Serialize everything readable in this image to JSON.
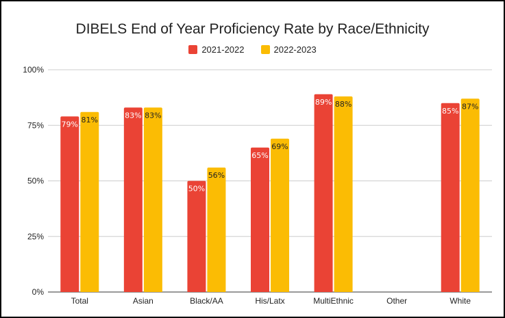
{
  "chart_data": {
    "type": "bar",
    "title": "DIBELS End of Year Proficiency Rate by Race/Ethnicity",
    "xlabel": "",
    "ylabel": "",
    "categories": [
      "Total",
      "Asian",
      "Black/AA",
      "His/Latx",
      "MultiEthnic",
      "Other",
      "White"
    ],
    "series": [
      {
        "name": "2021-2022",
        "color": "#EA4335",
        "values": [
          79,
          83,
          50,
          65,
          89,
          null,
          85
        ],
        "labels": [
          "79%",
          "83%",
          "50%",
          "65%",
          "89%",
          "",
          "85%"
        ]
      },
      {
        "name": "2022-2023",
        "color": "#FBBC04",
        "values": [
          81,
          83,
          56,
          69,
          88,
          null,
          87
        ],
        "labels": [
          "81%",
          "83%",
          "56%",
          "69%",
          "88%",
          "",
          "87%"
        ]
      }
    ],
    "ylim": [
      0,
      100
    ],
    "yticks": [
      "0%",
      "25%",
      "50%",
      "75%",
      "100%"
    ],
    "ytick_values": [
      0,
      25,
      50,
      75,
      100
    ],
    "grid": true,
    "legend_position": "top-center"
  }
}
